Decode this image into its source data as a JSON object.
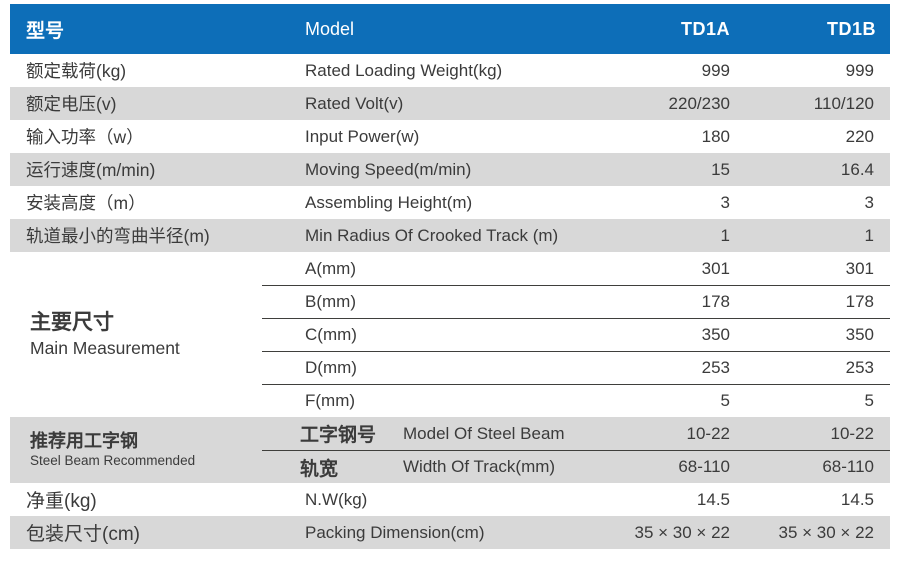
{
  "header": {
    "cn": "型号",
    "en": "Model",
    "model_a": "TD1A",
    "model_b": "TD1B"
  },
  "rows": [
    {
      "cn": "额定载荷(kg)",
      "en": "Rated Loading Weight(kg)",
      "a": "999",
      "b": "999"
    },
    {
      "cn": "额定电压(v)",
      "en": "Rated Volt(v)",
      "a": "220/230",
      "b": "110/120"
    },
    {
      "cn": "输入功率（w）",
      "en": "Input Power(w)",
      "a": "180",
      "b": "220"
    },
    {
      "cn": "运行速度(m/min)",
      "en": "Moving Speed(m/min)",
      "a": "15",
      "b": "16.4"
    },
    {
      "cn": "安装高度（m）",
      "en": "Assembling Height(m)",
      "a": "3",
      "b": "3"
    },
    {
      "cn": "轨道最小的弯曲半径(m)",
      "en": "Min Radius Of Crooked Track (m)",
      "a": "1",
      "b": "1"
    }
  ],
  "main_measurement": {
    "cn": "主要尺寸",
    "en": "Main Measurement",
    "subrows": [
      {
        "label": "A(mm)",
        "a": "301",
        "b": "301"
      },
      {
        "label": "B(mm)",
        "a": "178",
        "b": "178"
      },
      {
        "label": "C(mm)",
        "a": "350",
        "b": "350"
      },
      {
        "label": "D(mm)",
        "a": "253",
        "b": "253"
      },
      {
        "label": "F(mm)",
        "a": "5",
        "b": "5"
      }
    ]
  },
  "steel_beam": {
    "cn": "推荐用工字钢",
    "en": "Steel Beam Recommended",
    "subrows": [
      {
        "cn": "工字钢号",
        "en": "Model Of Steel Beam",
        "a": "10-22",
        "b": "10-22"
      },
      {
        "cn": "轨宽",
        "en": "Width Of Track(mm)",
        "a": "68-110",
        "b": "68-110"
      }
    ]
  },
  "bottom_rows": [
    {
      "cn": "净重(kg)",
      "en": "N.W(kg)",
      "a": "14.5",
      "b": "14.5"
    },
    {
      "cn": "包装尺寸(cm)",
      "en": "Packing Dimension(cm)",
      "a": "35 × 30 × 22",
      "b": "35 × 30 × 22"
    }
  ],
  "colors": {
    "header_bg": "#0d6eb8",
    "stripe": "#d8d8d8",
    "text": "#3b3b3b"
  }
}
